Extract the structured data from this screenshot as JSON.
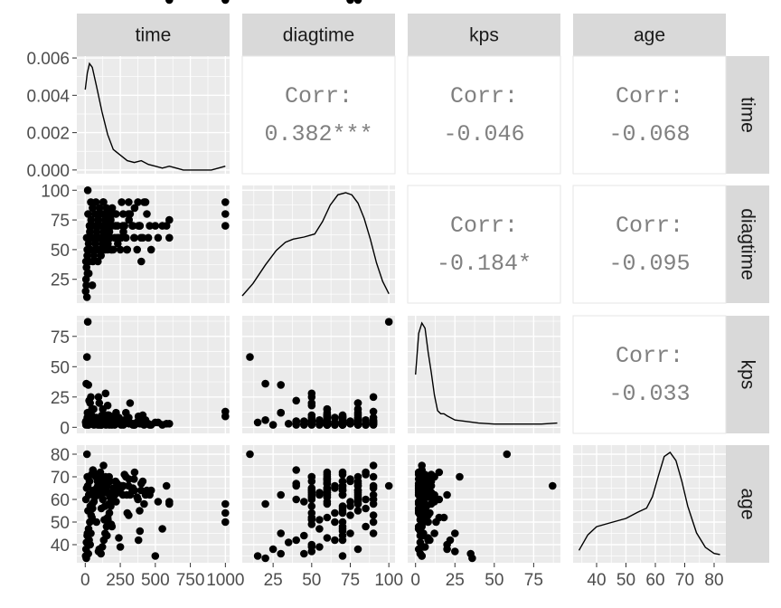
{
  "chart_data": {
    "type": "scatter",
    "variables": [
      "time",
      "diagtime",
      "kps",
      "age"
    ],
    "column_strips": [
      "time",
      "diagtime",
      "kps",
      "age"
    ],
    "row_strips": [
      "time",
      "diagtime",
      "kps",
      "age"
    ],
    "correlations": [
      {
        "row": "time",
        "col": "diagtime",
        "label": "Corr:",
        "value": "0.382***"
      },
      {
        "row": "time",
        "col": "kps",
        "label": "Corr:",
        "value": "-0.046"
      },
      {
        "row": "time",
        "col": "age",
        "label": "Corr:",
        "value": "-0.068"
      },
      {
        "row": "diagtime",
        "col": "kps",
        "label": "Corr:",
        "value": "-0.184*"
      },
      {
        "row": "diagtime",
        "col": "age",
        "label": "Corr:",
        "value": "-0.095"
      },
      {
        "row": "kps",
        "col": "age",
        "label": "Corr:",
        "value": "-0.033"
      }
    ],
    "axes": {
      "time": {
        "range": [
          -60,
          1030
        ],
        "ticks": [
          0,
          250,
          500,
          750,
          1000
        ],
        "tick_labels": [
          "0",
          "250",
          "500",
          "750",
          "1000"
        ]
      },
      "diagtime": {
        "range": [
          5,
          104
        ],
        "ticks": [
          25,
          50,
          75,
          100
        ],
        "tick_labels": [
          "25",
          "50",
          "75",
          "100"
        ]
      },
      "kps": {
        "range": [
          -5,
          92
        ],
        "ticks": [
          0,
          25,
          50,
          75
        ],
        "tick_labels": [
          "0",
          "25",
          "50",
          "75"
        ]
      },
      "age": {
        "range": [
          32,
          84
        ],
        "ticks": [
          40,
          50,
          60,
          70,
          80
        ],
        "tick_labels": [
          "40",
          "50",
          "60",
          "70",
          "80"
        ]
      },
      "time_density": {
        "range": [
          -0.0002,
          0.0061
        ],
        "ticks": [
          0,
          0.002,
          0.004,
          0.006
        ],
        "tick_labels": [
          "0.000",
          "0.002",
          "0.004",
          "0.006"
        ]
      }
    },
    "density": {
      "time": {
        "x": [
          0,
          15,
          30,
          50,
          80,
          120,
          160,
          200,
          250,
          300,
          350,
          400,
          450,
          500,
          550,
          600,
          650,
          700,
          750,
          800,
          850,
          900,
          950,
          1000
        ],
        "y": [
          0.0043,
          0.0052,
          0.0057,
          0.0055,
          0.0045,
          0.0031,
          0.0019,
          0.0011,
          0.0008,
          0.0005,
          0.0004,
          0.0005,
          0.0003,
          0.0002,
          0.0001,
          0.0002,
          0.0001,
          0.0,
          0.0,
          0.0,
          0.0,
          0.0,
          0.0001,
          0.0002
        ]
      },
      "diagtime": {
        "x": [
          5,
          12,
          20,
          27,
          33,
          38,
          45,
          52,
          57,
          62,
          67,
          72,
          76,
          80,
          84,
          88,
          92,
          96,
          100
        ],
        "y": [
          0.0,
          0.12,
          0.3,
          0.44,
          0.52,
          0.55,
          0.57,
          0.6,
          0.72,
          0.88,
          0.98,
          1.0,
          0.98,
          0.9,
          0.75,
          0.55,
          0.32,
          0.14,
          0.02
        ]
      },
      "kps": {
        "x": [
          0,
          2,
          4,
          6,
          8,
          10,
          12,
          14,
          16,
          18,
          20,
          25,
          30,
          40,
          50,
          60,
          70,
          80,
          90
        ],
        "y": [
          0.5,
          0.9,
          1.0,
          0.95,
          0.72,
          0.52,
          0.3,
          0.15,
          0.12,
          0.12,
          0.1,
          0.06,
          0.05,
          0.03,
          0.02,
          0.02,
          0.02,
          0.02,
          0.03
        ]
      },
      "age": {
        "x": [
          34,
          37,
          40,
          45,
          50,
          54,
          57,
          59,
          61,
          63,
          65,
          67,
          69,
          71,
          74,
          77,
          80,
          82
        ],
        "y": [
          0.05,
          0.2,
          0.28,
          0.32,
          0.36,
          0.42,
          0.46,
          0.57,
          0.77,
          0.96,
          1.0,
          0.92,
          0.72,
          0.48,
          0.22,
          0.08,
          0.02,
          0.01
        ]
      }
    },
    "observations": {
      "time": [
        5,
        10,
        15,
        20,
        25,
        30,
        40,
        50,
        60,
        70,
        80,
        90,
        100,
        110,
        120,
        130,
        140,
        150,
        160,
        170,
        180,
        190,
        200,
        220,
        240,
        260,
        280,
        300,
        320,
        350,
        380,
        400,
        420,
        450,
        500,
        550,
        600,
        1000,
        12,
        18,
        22,
        35,
        45,
        55,
        75,
        85,
        95,
        105,
        115,
        125,
        135,
        145,
        155,
        165,
        175,
        185,
        210,
        230,
        250,
        270,
        290,
        310,
        340,
        370,
        390,
        410,
        430,
        470,
        520,
        580,
        1000,
        8,
        28,
        48,
        68,
        88,
        108,
        128,
        148,
        168,
        188,
        228,
        268,
        308,
        348,
        388,
        440,
        16,
        36,
        56,
        76,
        96,
        116,
        136,
        156,
        176,
        196,
        216,
        256,
        296,
        336,
        376,
        3,
        6,
        9,
        14,
        24,
        33,
        42,
        52,
        62,
        72,
        82,
        92,
        102,
        112,
        122,
        132,
        142,
        152,
        162,
        172,
        182,
        192,
        232,
        272,
        312,
        352,
        398,
        460,
        600,
        1000
      ],
      "diagtime": [
        40,
        60,
        50,
        80,
        30,
        70,
        90,
        20,
        60,
        50,
        70,
        40,
        80,
        60,
        50,
        90,
        70,
        60,
        50,
        80,
        60,
        70,
        50,
        80,
        60,
        90,
        70,
        50,
        80,
        60,
        70,
        40,
        90,
        60,
        70,
        70,
        60,
        90,
        10,
        100,
        30,
        50,
        60,
        40,
        70,
        80,
        50,
        60,
        70,
        80,
        60,
        50,
        70,
        60,
        80,
        50,
        60,
        70,
        50,
        80,
        60,
        90,
        70,
        50,
        70,
        60,
        90,
        50,
        60,
        70,
        70,
        20,
        40,
        60,
        80,
        50,
        70,
        90,
        60,
        80,
        50,
        60,
        70,
        80,
        60,
        70,
        80,
        30,
        50,
        70,
        90,
        60,
        80,
        50,
        70,
        60,
        80,
        70,
        60,
        50,
        70,
        90,
        15,
        25,
        35,
        45,
        55,
        65,
        75,
        85,
        45,
        55,
        65,
        75,
        85,
        45,
        55,
        65,
        75,
        85,
        55,
        65,
        75,
        85,
        55,
        65,
        75,
        85,
        60,
        70,
        75,
        80
      ],
      "kps": [
        5,
        3,
        8,
        2,
        12,
        4,
        25,
        6,
        15,
        3,
        8,
        2,
        20,
        5,
        10,
        4,
        7,
        3,
        18,
        6,
        9,
        2,
        4,
        12,
        8,
        3,
        6,
        5,
        20,
        3,
        9,
        5,
        2,
        3,
        4,
        2,
        3,
        13,
        58,
        87,
        35,
        20,
        10,
        4,
        6,
        3,
        25,
        8,
        2,
        15,
        5,
        28,
        3,
        10,
        7,
        4,
        2,
        6,
        5,
        3,
        12,
        8,
        2,
        4,
        3,
        10,
        6,
        2,
        4,
        3,
        9,
        36,
        22,
        15,
        8,
        6,
        4,
        3,
        2,
        10,
        5,
        7,
        3,
        5,
        2,
        4,
        3,
        12,
        3,
        8,
        4,
        6,
        2,
        5,
        10,
        3,
        7,
        4,
        2,
        6,
        3,
        5,
        4,
        2,
        3,
        5,
        2,
        4,
        3,
        6,
        2,
        5,
        3,
        4,
        2,
        3,
        6,
        8,
        5,
        4,
        3,
        2,
        4,
        3,
        5,
        2,
        3,
        2,
        3,
        2
      ],
      "age": [
        60,
        65,
        70,
        55,
        62,
        68,
        45,
        58,
        72,
        64,
        50,
        66,
        38,
        69,
        63,
        75,
        57,
        67,
        52,
        70,
        61,
        48,
        65,
        59,
        43,
        66,
        71,
        54,
        62,
        64,
        42,
        67,
        58,
        63,
        35,
        47,
        58,
        50,
        80,
        66,
        36,
        40,
        71,
        73,
        62,
        64,
        37,
        69,
        56,
        60,
        67,
        70,
        44,
        63,
        68,
        49,
        62,
        64,
        39,
        66,
        70,
        53,
        65,
        61,
        46,
        68,
        62,
        64,
        59,
        66,
        54,
        34,
        42,
        52,
        61,
        68,
        72,
        65,
        63,
        58,
        60,
        67,
        62,
        66,
        69,
        55,
        64,
        45,
        57,
        64,
        70,
        62,
        67,
        51,
        66,
        61,
        63,
        68,
        65,
        62,
        64,
        60,
        35,
        38,
        41,
        44,
        47,
        50,
        53,
        56,
        59,
        62,
        65,
        68,
        71,
        36,
        39,
        42,
        45,
        48,
        51,
        54,
        57,
        60,
        63,
        66,
        69,
        72,
        64,
        62,
        59,
        58
      ]
    }
  }
}
